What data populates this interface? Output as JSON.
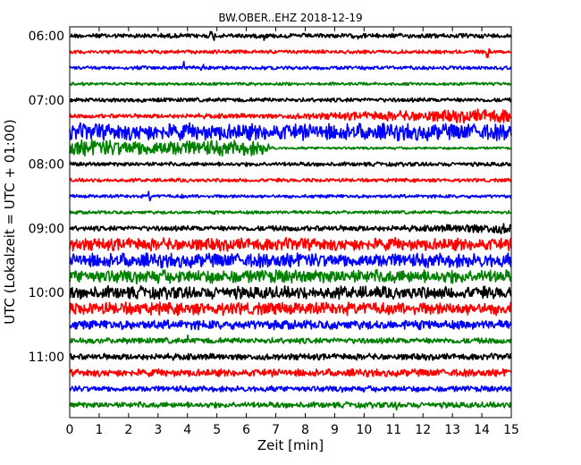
{
  "chart_data": {
    "type": "line",
    "title": "BW.OBER..EHZ 2018-12-19",
    "xlabel": "Zeit  [min]",
    "ylabel": "UTC (Lokalzeit = UTC + 01:00)",
    "xlim": [
      0,
      15
    ],
    "x_ticks": [
      "0",
      "1",
      "2",
      "3",
      "4",
      "5",
      "6",
      "7",
      "8",
      "9",
      "10",
      "11",
      "12",
      "13",
      "14",
      "15"
    ],
    "y_ticks": [
      {
        "label": "06:00",
        "row": 0
      },
      {
        "label": "07:00",
        "row": 4
      },
      {
        "label": "08:00",
        "row": 8
      },
      {
        "label": "09:00",
        "row": 12
      },
      {
        "label": "10:00",
        "row": 16
      },
      {
        "label": "11:00",
        "row": 20
      }
    ],
    "trace_colors": [
      "#000000",
      "#ff0000",
      "#0000ff",
      "#008000"
    ],
    "rows": [
      {
        "time": "06:00",
        "color": "#000000",
        "amplitude": 0.28,
        "spikes": [
          [
            4.8,
            0.9
          ],
          [
            4.9,
            0.8
          ],
          [
            6.6,
            0.7
          ],
          [
            9.8,
            0.7
          ]
        ]
      },
      {
        "time": "06:15",
        "color": "#ff0000",
        "amplitude": 0.22,
        "spikes": [
          [
            14.2,
            1.2
          ]
        ]
      },
      {
        "time": "06:30",
        "color": "#0000ff",
        "amplitude": 0.22,
        "spikes": [
          [
            3.9,
            1.3
          ],
          [
            4.2,
            0.9
          ],
          [
            4.5,
            1.0
          ]
        ]
      },
      {
        "time": "06:45",
        "color": "#008000",
        "amplitude": 0.18,
        "spikes": []
      },
      {
        "time": "07:00",
        "color": "#000000",
        "amplitude": 0.25,
        "spikes": []
      },
      {
        "time": "07:15",
        "color": "#ff0000",
        "amplitude": 0.35,
        "spikes": [],
        "ramp": [
          [
            0,
            0.25
          ],
          [
            7,
            0.3
          ],
          [
            15,
            0.9
          ]
        ]
      },
      {
        "time": "07:30",
        "color": "#0000ff",
        "amplitude": 1.0,
        "spikes": []
      },
      {
        "time": "07:45",
        "color": "#008000",
        "amplitude": 0.9,
        "spikes": [],
        "ramp": [
          [
            0,
            1.0
          ],
          [
            6.5,
            0.9
          ],
          [
            7,
            0.15
          ],
          [
            15,
            0.15
          ]
        ]
      },
      {
        "time": "08:00",
        "color": "#000000",
        "amplitude": 0.25,
        "spikes": []
      },
      {
        "time": "08:15",
        "color": "#ff0000",
        "amplitude": 0.22,
        "spikes": []
      },
      {
        "time": "08:30",
        "color": "#0000ff",
        "amplitude": 0.2,
        "spikes": [
          [
            2.7,
            1.1
          ],
          [
            3.8,
            0.5
          ]
        ]
      },
      {
        "time": "08:45",
        "color": "#008000",
        "amplitude": 0.2,
        "spikes": []
      },
      {
        "time": "09:00",
        "color": "#000000",
        "amplitude": 0.35,
        "spikes": [
          [
            13.5,
            0.9
          ]
        ],
        "ramp": [
          [
            0,
            0.3
          ],
          [
            12,
            0.35
          ],
          [
            15,
            0.7
          ]
        ]
      },
      {
        "time": "09:15",
        "color": "#ff0000",
        "amplitude": 0.75,
        "spikes": []
      },
      {
        "time": "09:30",
        "color": "#0000ff",
        "amplitude": 0.85,
        "spikes": []
      },
      {
        "time": "09:45",
        "color": "#008000",
        "amplitude": 0.8,
        "spikes": []
      },
      {
        "time": "10:00",
        "color": "#000000",
        "amplitude": 0.75,
        "spikes": []
      },
      {
        "time": "10:15",
        "color": "#ff0000",
        "amplitude": 0.75,
        "spikes": []
      },
      {
        "time": "10:30",
        "color": "#0000ff",
        "amplitude": 0.55,
        "spikes": []
      },
      {
        "time": "10:45",
        "color": "#008000",
        "amplitude": 0.35,
        "spikes": [
          [
            1.8,
            0.8
          ],
          [
            4.0,
            0.7
          ]
        ]
      },
      {
        "time": "11:00",
        "color": "#000000",
        "amplitude": 0.38,
        "spikes": [
          [
            6.3,
            0.7
          ]
        ]
      },
      {
        "time": "11:15",
        "color": "#ff0000",
        "amplitude": 0.45,
        "spikes": []
      },
      {
        "time": "11:30",
        "color": "#0000ff",
        "amplitude": 0.35,
        "spikes": []
      },
      {
        "time": "11:45",
        "color": "#008000",
        "amplitude": 0.35,
        "spikes": [
          [
            11.1,
            0.8
          ],
          [
            13.0,
            0.7
          ]
        ]
      }
    ]
  }
}
